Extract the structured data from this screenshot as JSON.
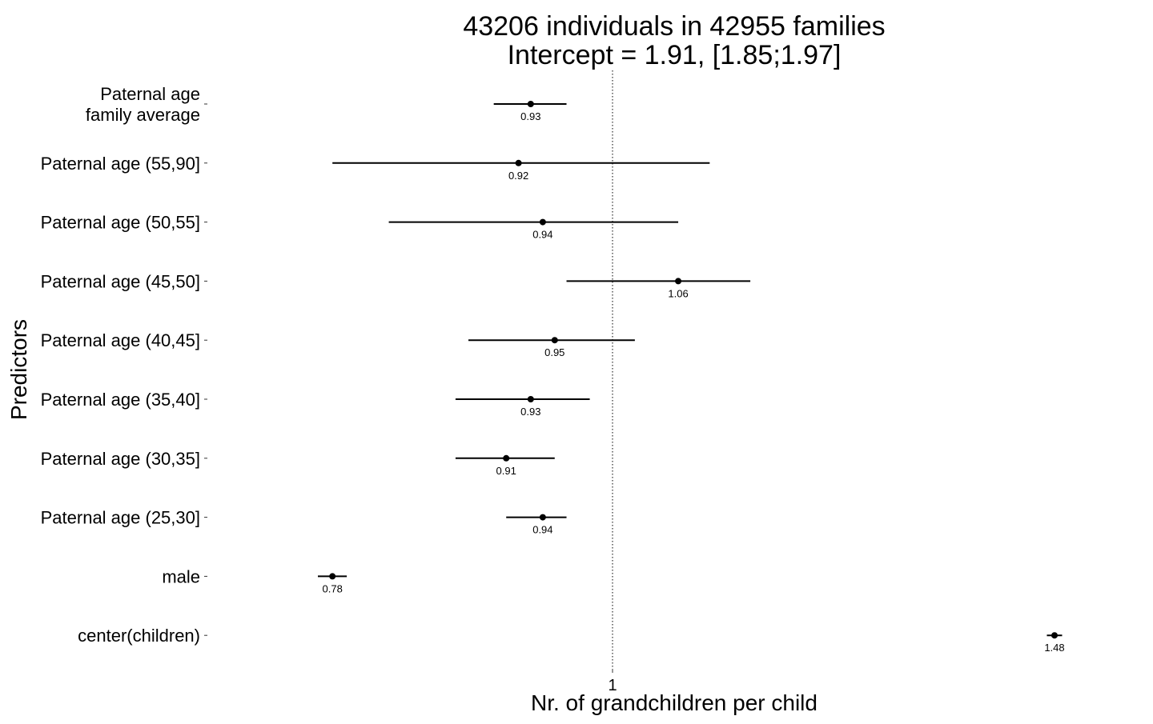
{
  "chart_data": {
    "type": "forest",
    "title": [
      "43206 individuals in 42955 families",
      "Intercept = 1.91, [1.85;1.97]"
    ],
    "xlabel": "Nr. of grandchildren per child",
    "ylabel": "Predictors",
    "x_scale": "log",
    "xlim": [
      0.74,
      1.53
    ],
    "x_ticks": [
      {
        "value": 1,
        "label": "1"
      }
    ],
    "reference_line": 1,
    "grid": false,
    "rows": [
      {
        "label": [
          "Paternal age",
          "family average"
        ],
        "estimate": 0.93,
        "estimate_label": "0.93",
        "ci": [
          0.9,
          0.96
        ]
      },
      {
        "label": [
          "Paternal age (55,90]"
        ],
        "estimate": 0.92,
        "estimate_label": "0.92",
        "ci": [
          0.78,
          1.09
        ]
      },
      {
        "label": [
          "Paternal age (50,55]"
        ],
        "estimate": 0.94,
        "estimate_label": "0.94",
        "ci": [
          0.82,
          1.06
        ]
      },
      {
        "label": [
          "Paternal age (45,50]"
        ],
        "estimate": 1.06,
        "estimate_label": "1.06",
        "ci": [
          0.96,
          1.13
        ]
      },
      {
        "label": [
          "Paternal age (40,45]"
        ],
        "estimate": 0.95,
        "estimate_label": "0.95",
        "ci": [
          0.88,
          1.02
        ]
      },
      {
        "label": [
          "Paternal age (35,40]"
        ],
        "estimate": 0.93,
        "estimate_label": "0.93",
        "ci": [
          0.87,
          0.98
        ]
      },
      {
        "label": [
          "Paternal age (30,35]"
        ],
        "estimate": 0.91,
        "estimate_label": "0.91",
        "ci": [
          0.87,
          0.95
        ]
      },
      {
        "label": [
          "Paternal age (25,30]"
        ],
        "estimate": 0.94,
        "estimate_label": "0.94",
        "ci": [
          0.91,
          0.96
        ]
      },
      {
        "label": [
          "male"
        ],
        "estimate": 0.78,
        "estimate_label": "0.78",
        "ci": [
          0.77,
          0.79
        ]
      },
      {
        "label": [
          "center(children)"
        ],
        "estimate": 1.48,
        "estimate_label": "1.48",
        "ci": [
          1.47,
          1.49
        ]
      }
    ]
  }
}
